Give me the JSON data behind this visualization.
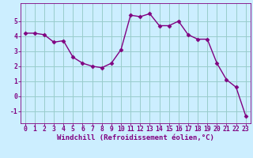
{
  "x": [
    0,
    1,
    2,
    3,
    4,
    5,
    6,
    7,
    8,
    9,
    10,
    11,
    12,
    13,
    14,
    15,
    16,
    17,
    18,
    19,
    20,
    21,
    22,
    23
  ],
  "y": [
    4.2,
    4.2,
    4.1,
    3.6,
    3.7,
    2.6,
    2.2,
    2.0,
    1.9,
    2.2,
    3.1,
    5.4,
    5.3,
    5.5,
    4.7,
    4.7,
    5.0,
    4.1,
    3.8,
    3.8,
    2.2,
    1.1,
    0.6,
    -1.3
  ],
  "line_color": "#800080",
  "marker": "D",
  "marker_size": 2.5,
  "bg_color": "#cceeff",
  "grid_color": "#99cccc",
  "xlabel": "Windchill (Refroidissement éolien,°C)",
  "xlim": [
    -0.5,
    23.5
  ],
  "ylim": [
    -1.8,
    6.2
  ],
  "yticks": [
    -1,
    0,
    1,
    2,
    3,
    4,
    5
  ],
  "xticks": [
    0,
    1,
    2,
    3,
    4,
    5,
    6,
    7,
    8,
    9,
    10,
    11,
    12,
    13,
    14,
    15,
    16,
    17,
    18,
    19,
    20,
    21,
    22,
    23
  ],
  "xlabel_fontsize": 6.5,
  "tick_fontsize": 5.8,
  "line_width": 1.0
}
